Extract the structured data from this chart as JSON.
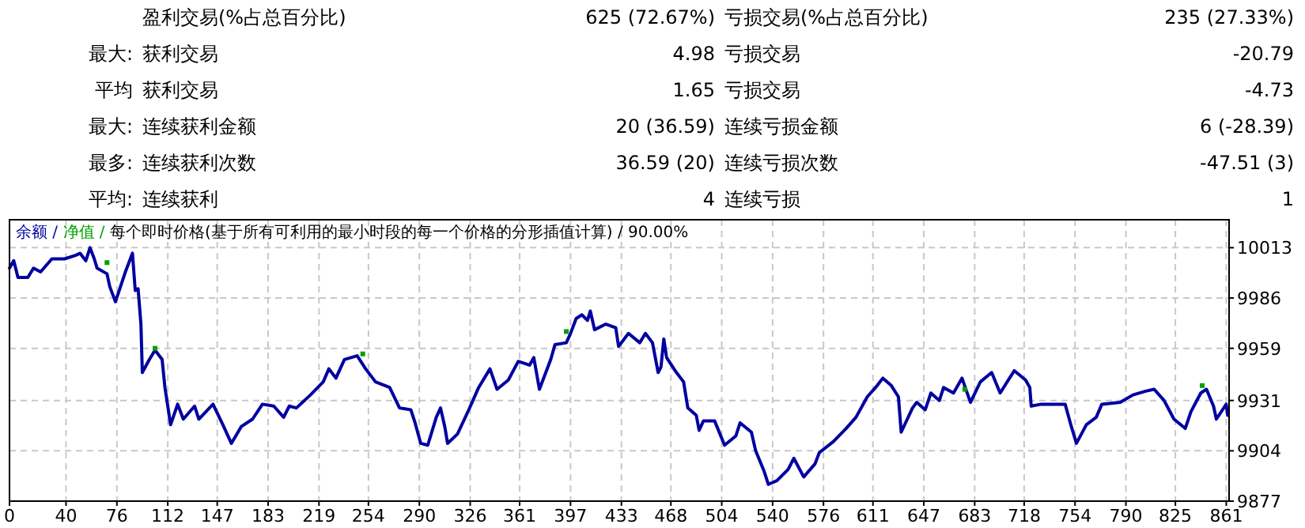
{
  "chart_data": [
    {
      "type": "other",
      "annotations": [
        "盈利交易(%占总百分比)",
        "625 (72.67%)",
        "亏损交易(%占总百分比)",
        "235 (27.33%)",
        "最大:",
        "获利交易",
        "4.98",
        "亏损交易",
        "-20.79",
        "平均",
        "获利交易",
        "1.65",
        "亏损交易",
        "-4.73",
        "最大:",
        "连续获利金额",
        "20 (36.59)",
        "连续亏损金额",
        "6 (-28.39)",
        "最多:",
        "连续获利次数",
        "36.59 (20)",
        "连续亏损次数",
        "-47.51 (3)",
        "平均:",
        "连续获利",
        "4",
        "连续亏损",
        "1"
      ]
    },
    {
      "type": "line",
      "title": "余额 / 净值 / 每个即时价格(基于所有可利用的最小时段的每一个价格的分形插值计算) / 90.00%",
      "grid": true,
      "xlim": [
        0,
        863
      ],
      "xticks": [
        0,
        40,
        76,
        112,
        147,
        183,
        219,
        254,
        290,
        326,
        361,
        397,
        433,
        468,
        504,
        540,
        576,
        611,
        647,
        683,
        718,
        754,
        790,
        825,
        861
      ],
      "ylim": [
        9877,
        10028
      ],
      "yticks": [
        9877,
        9904,
        9931,
        9959,
        9986,
        10013
      ],
      "series": [
        {
          "color": "#0000a0",
          "x": [
            0,
            3,
            6,
            13,
            17,
            22,
            30,
            39,
            47,
            50,
            54,
            57,
            60,
            62,
            69,
            71,
            75,
            82,
            87,
            89,
            91,
            93,
            94,
            99,
            103,
            108,
            110,
            114,
            119,
            123,
            131,
            134,
            144,
            151,
            157,
            164,
            172,
            179,
            187,
            194,
            198,
            203,
            213,
            222,
            226,
            231,
            237,
            246,
            252,
            259,
            269,
            276,
            284,
            287,
            291,
            296,
            302,
            305,
            308,
            310,
            317,
            325,
            332,
            340,
            345,
            353,
            360,
            368,
            371,
            375,
            383,
            386,
            394,
            397,
            401,
            405,
            409,
            411,
            414,
            422,
            429,
            431,
            438,
            446,
            450,
            455,
            459,
            461,
            463,
            465,
            471,
            477,
            480,
            486,
            488,
            491,
            499,
            506,
            514,
            517,
            525,
            528,
            534,
            537,
            543,
            551,
            555,
            562,
            570,
            573,
            583,
            592,
            599,
            607,
            614,
            618,
            624,
            629,
            631,
            639,
            642,
            648,
            652,
            658,
            661,
            668,
            674,
            680,
            687,
            695,
            701,
            711,
            719,
            722,
            723,
            730,
            741,
            747,
            751,
            755,
            762,
            769,
            773,
            786,
            795,
            804,
            810,
            817,
            824,
            832,
            836,
            843,
            847,
            852,
            854,
            861,
            862
          ],
          "values": [
            10002,
            10006,
            9997,
            9997,
            10002,
            10000,
            10007,
            10007,
            10009,
            10010,
            10006,
            10013,
            10007,
            10002,
            9999,
            9992,
            9984,
            10000,
            10010,
            9990,
            9991,
            9972,
            9946,
            9953,
            9958,
            9953,
            9938,
            9918,
            9929,
            9921,
            9928,
            9921,
            9929,
            9918,
            9908,
            9917,
            9921,
            9929,
            9928,
            9922,
            9928,
            9927,
            9934,
            9941,
            9948,
            9943,
            9953,
            9955,
            9948,
            9941,
            9938,
            9927,
            9926,
            9919,
            9908,
            9907,
            9922,
            9927,
            9917,
            9908,
            9913,
            9926,
            9938,
            9948,
            9937,
            9942,
            9952,
            9950,
            9954,
            9937,
            9953,
            9961,
            9962,
            9967,
            9975,
            9977,
            9974,
            9979,
            9969,
            9972,
            9970,
            9960,
            9967,
            9962,
            9967,
            9962,
            9946,
            9949,
            9964,
            9954,
            9947,
            9941,
            9927,
            9923,
            9915,
            9920,
            9920,
            9907,
            9912,
            9919,
            9914,
            9904,
            9893,
            9886,
            9888,
            9894,
            9900,
            9890,
            9897,
            9903,
            9909,
            9916,
            9922,
            9933,
            9939,
            9943,
            9939,
            9933,
            9914,
            9927,
            9930,
            9926,
            9935,
            9931,
            9938,
            9935,
            9943,
            9930,
            9941,
            9946,
            9935,
            9947,
            9942,
            9938,
            9928,
            9929,
            9929,
            9929,
            9918,
            9908,
            9918,
            9922,
            9929,
            9930,
            9934,
            9936,
            9937,
            9931,
            9921,
            9916,
            9925,
            9935,
            9937,
            9928,
            9921,
            9929,
            9923
          ]
        },
        {
          "color": "#00a000",
          "type": "scatter",
          "marker": "square",
          "x": [
            69,
            103,
            250,
            394,
            676,
            844
          ],
          "values": [
            10005,
            9959,
            9956,
            9968,
            9937,
            9939
          ]
        }
      ]
    }
  ]
}
